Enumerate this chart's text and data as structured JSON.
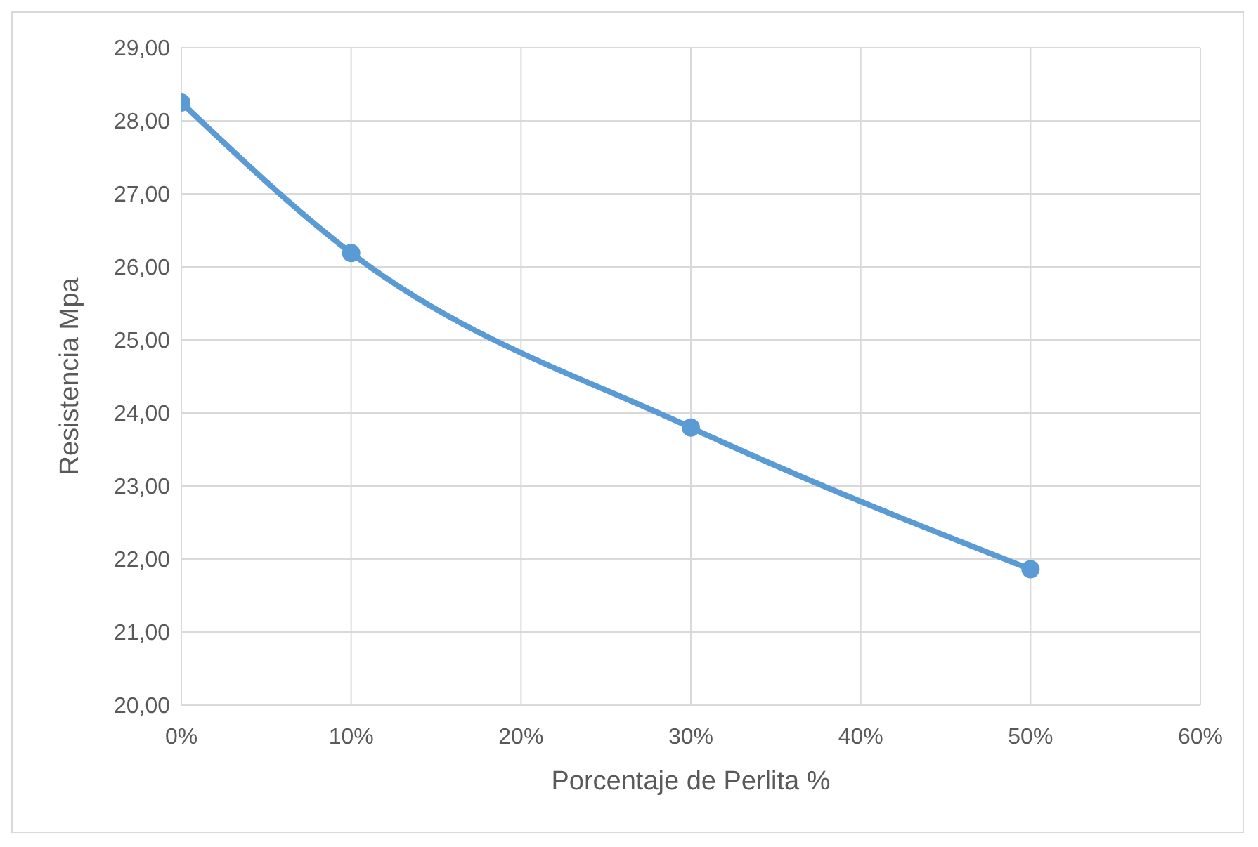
{
  "chart_data": {
    "type": "line",
    "xlabel": "Porcentaje de Perlita %",
    "ylabel": "Resistencia Mpa",
    "x": [
      0,
      0.1,
      0.3,
      0.5
    ],
    "series": [
      {
        "color": "#5b9bd5",
        "values": [
          28.25,
          26.19,
          23.8,
          21.86
        ]
      }
    ],
    "xlim": [
      0,
      0.6
    ],
    "xticks": [
      {
        "value": 0,
        "label": "0%"
      },
      {
        "value": 0.1,
        "label": "10%"
      },
      {
        "value": 0.2,
        "label": "20%"
      },
      {
        "value": 0.3,
        "label": "30%"
      },
      {
        "value": 0.4,
        "label": "40%"
      },
      {
        "value": 0.5,
        "label": "50%"
      },
      {
        "value": 0.6,
        "label": "60%"
      }
    ],
    "ylim": [
      20,
      29
    ],
    "yticks": [
      {
        "value": 20,
        "label": "20,00"
      },
      {
        "value": 21,
        "label": "21,00"
      },
      {
        "value": 22,
        "label": "22,00"
      },
      {
        "value": 23,
        "label": "23,00"
      },
      {
        "value": 24,
        "label": "24,00"
      },
      {
        "value": 25,
        "label": "25,00"
      },
      {
        "value": 26,
        "label": "26,00"
      },
      {
        "value": 27,
        "label": "27,00"
      },
      {
        "value": 28,
        "label": "28,00"
      },
      {
        "value": 29,
        "label": "29,00"
      }
    ],
    "grid": true,
    "marker": "circle",
    "line_style": "solid",
    "legend": false
  }
}
